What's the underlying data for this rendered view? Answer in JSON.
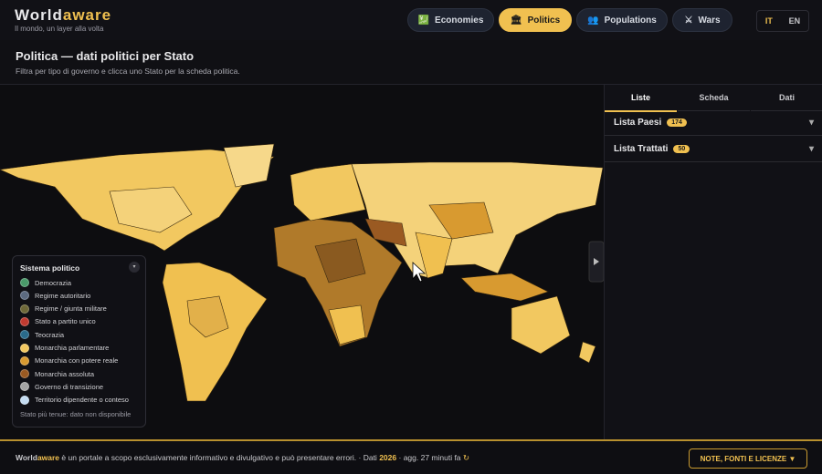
{
  "header": {
    "brand_a": "World",
    "brand_b": "aware",
    "tagline": "Il mondo, un layer alla volta"
  },
  "nav": [
    {
      "label": "Economies",
      "active": false
    },
    {
      "label": "Politics",
      "active": true
    },
    {
      "label": "Populations",
      "active": false
    },
    {
      "label": "Wars",
      "active": false
    }
  ],
  "lang": [
    "IT",
    "EN"
  ],
  "page": {
    "title": "Politica — dati politici per Stato",
    "subtitle": "Filtra per tipo di governo e clicca uno Stato per la scheda politica."
  },
  "legend": {
    "title": "Sistema politico",
    "items": [
      {
        "label": "Democrazia",
        "color": "#4a9a6a"
      },
      {
        "label": "Regime autoritario",
        "color": "#5c6a80"
      },
      {
        "label": "Regime / giunta militare",
        "color": "#6e6838"
      },
      {
        "label": "Stato a partito unico",
        "color": "#c03a30"
      },
      {
        "label": "Teocrazia",
        "color": "#2a6a8a"
      },
      {
        "label": "Monarchia parlamentare",
        "color": "#f2c860"
      },
      {
        "label": "Monarchia con potere reale",
        "color": "#d89a30"
      },
      {
        "label": "Monarchia assoluta",
        "color": "#9a5a22"
      },
      {
        "label": "Governo di transizione",
        "color": "#a4a4a4"
      },
      {
        "label": "Territorio dipendente o conteso",
        "color": "#c4dcf2"
      }
    ],
    "note": "Stato più tenue: dato non disponibile"
  },
  "panel": {
    "tabs": [
      "Liste",
      "Scheda",
      "Dati"
    ],
    "lists": [
      {
        "label": "Lista Paesi",
        "count": 174
      },
      {
        "label": "Lista Trattati",
        "count": 50
      }
    ]
  },
  "footer": {
    "brand_a": "World",
    "brand_b": "aware",
    "text": "è un portale a scopo esclusivamente informativo e divulgativo e può presentare errori.",
    "data_label": "· Dati",
    "year": 2026,
    "updated": "· agg. 27 minuti fa",
    "button": "NOTE, FONTI E LICENZE ▼"
  }
}
